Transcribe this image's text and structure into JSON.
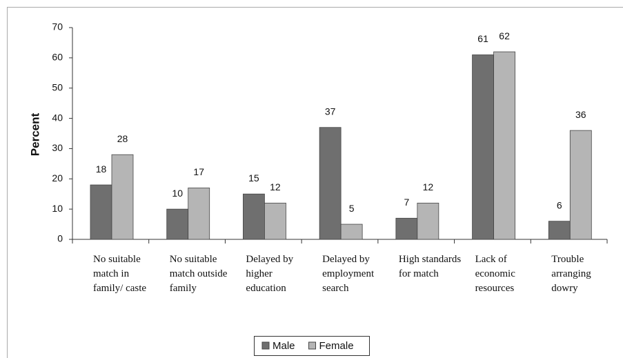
{
  "chart_data": {
    "type": "bar",
    "y_label": "Percent",
    "categories": [
      "No suitable match in family/ caste",
      "No suitable match outside family",
      "Delayed by higher education",
      "Delayed by employment search",
      "High standards for match",
      "Lack of economic resources",
      "Trouble arranging dowry"
    ],
    "series": [
      {
        "name": "Male",
        "color": "#6f6f6f",
        "values": [
          18,
          10,
          15,
          37,
          7,
          61,
          6
        ]
      },
      {
        "name": "Female",
        "color": "#b5b5b5",
        "values": [
          28,
          17,
          12,
          5,
          12,
          62,
          36
        ]
      }
    ],
    "ylim": [
      0,
      70
    ],
    "yticks": [
      0,
      10,
      20,
      30,
      40,
      50,
      60,
      70
    ],
    "legend": "bottom"
  }
}
